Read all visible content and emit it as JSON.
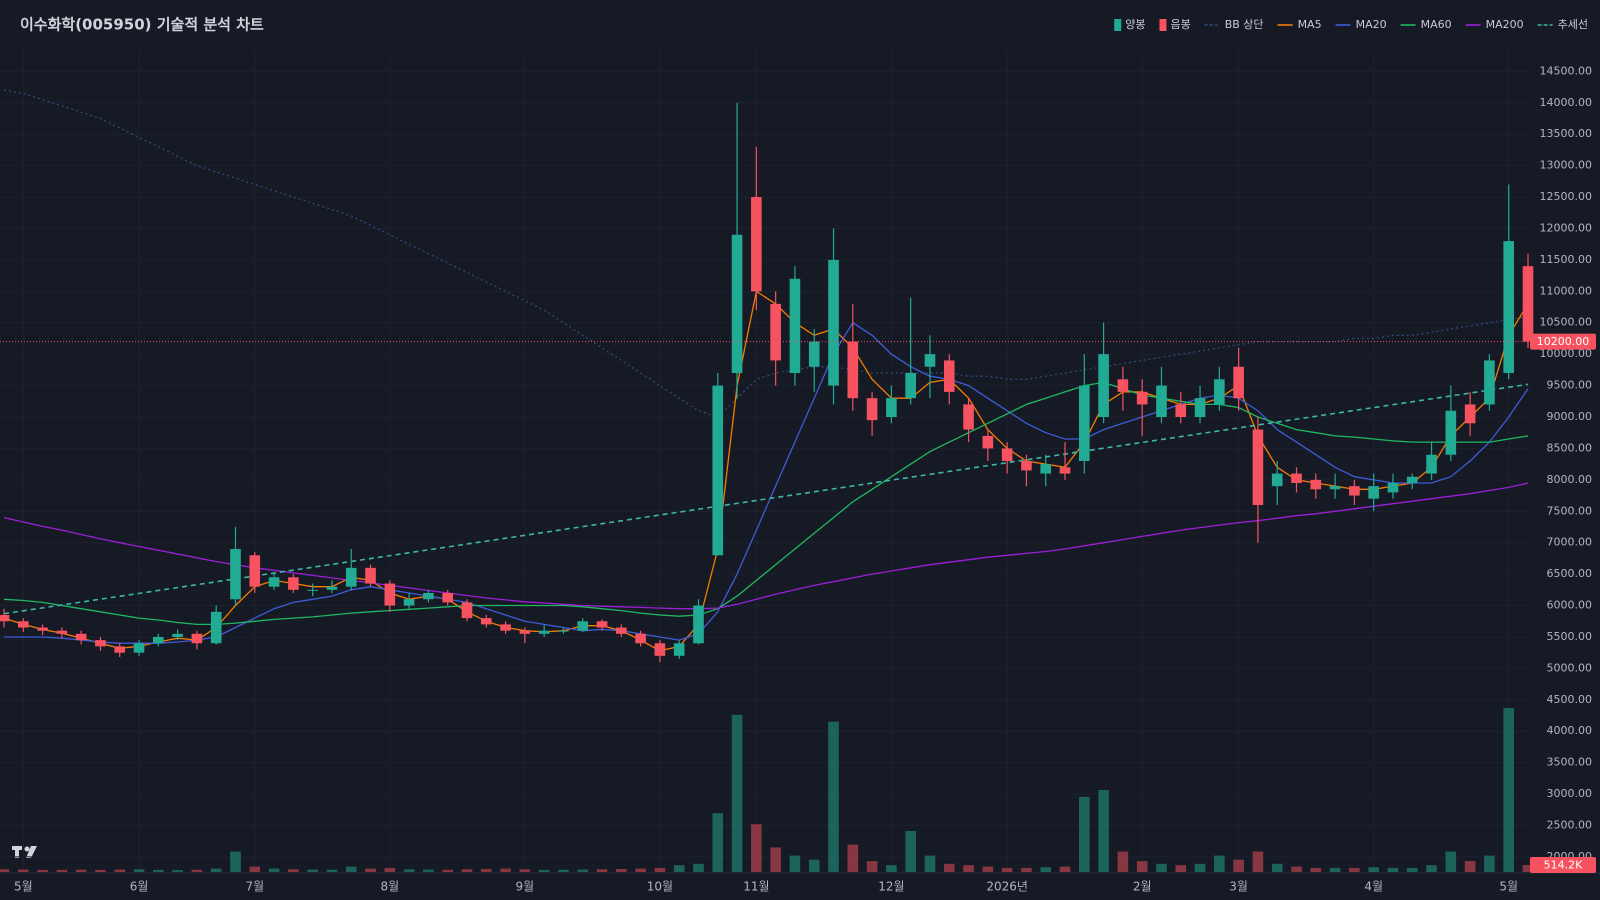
{
  "chart_data": {
    "type": "candlestick",
    "title": "이수화학(005950) 기술적 분석 차트",
    "categories": [
      null,
      "5월",
      null,
      null,
      null,
      null,
      null,
      "6월",
      null,
      null,
      null,
      null,
      null,
      "7월",
      null,
      null,
      null,
      null,
      null,
      null,
      "8월",
      null,
      null,
      null,
      null,
      null,
      null,
      "9월",
      null,
      null,
      null,
      null,
      null,
      null,
      "10월",
      null,
      null,
      null,
      null,
      "11월",
      null,
      null,
      null,
      null,
      null,
      null,
      "12월",
      null,
      null,
      null,
      null,
      null,
      "2026년",
      null,
      null,
      null,
      null,
      null,
      null,
      "2월",
      null,
      null,
      null,
      null,
      "3월",
      null,
      null,
      null,
      null,
      null,
      null,
      "4월",
      null,
      null,
      null,
      null,
      null,
      null,
      "5월",
      null
    ],
    "candles": {
      "up_name": "양봉",
      "down_name": "음봉",
      "up_color": "#22ab94",
      "down_color": "#f7525f",
      "open": [
        5850,
        5750,
        5650,
        5600,
        5550,
        5450,
        5350,
        5250,
        5400,
        5500,
        5550,
        5400,
        6100,
        6800,
        6300,
        6450,
        6250,
        6250,
        6300,
        6600,
        6350,
        6000,
        6100,
        6200,
        6050,
        5800,
        5700,
        5600,
        5550,
        5600,
        5600,
        5750,
        5650,
        5550,
        5400,
        5200,
        5400,
        6800,
        9700,
        12500,
        10800,
        9700,
        9800,
        9500,
        10200,
        9300,
        9000,
        9300,
        9800,
        9900,
        9200,
        8700,
        8500,
        8300,
        8100,
        8200,
        8300,
        9000,
        9600,
        9400,
        9000,
        9200,
        9000,
        9200,
        9800,
        8800,
        7900,
        8100,
        8000,
        7850,
        7900,
        7700,
        7800,
        7950,
        8100,
        8400,
        9200,
        9200,
        9700,
        11400
      ],
      "high": [
        5950,
        5800,
        5700,
        5650,
        5600,
        5500,
        5400,
        5450,
        5550,
        5620,
        5600,
        6000,
        7250,
        6850,
        6500,
        6500,
        6350,
        6400,
        6900,
        6650,
        6400,
        6200,
        6250,
        6250,
        6100,
        5850,
        5750,
        5650,
        5700,
        5650,
        5800,
        5780,
        5700,
        5600,
        5450,
        5450,
        6100,
        9700,
        14000,
        13300,
        11000,
        11400,
        10400,
        12000,
        10800,
        9400,
        9500,
        10900,
        10300,
        10000,
        9300,
        8800,
        8600,
        8400,
        8400,
        8600,
        10000,
        10500,
        9800,
        9600,
        9800,
        9400,
        9500,
        9800,
        10100,
        9000,
        8300,
        8200,
        8100,
        8100,
        8000,
        8100,
        8100,
        8100,
        8600,
        9500,
        9400,
        10000,
        12700,
        11600
      ],
      "low": [
        5650,
        5580,
        5530,
        5480,
        5380,
        5280,
        5180,
        5200,
        5350,
        5450,
        5300,
        5380,
        6000,
        6200,
        6250,
        6200,
        6150,
        6200,
        6250,
        6300,
        5900,
        5950,
        6050,
        6000,
        5750,
        5650,
        5550,
        5400,
        5500,
        5550,
        5580,
        5600,
        5500,
        5350,
        5100,
        5150,
        5380,
        6800,
        9300,
        10700,
        9500,
        9500,
        9400,
        9200,
        9100,
        8700,
        8900,
        9200,
        9300,
        9200,
        8600,
        8300,
        8100,
        7900,
        7900,
        8000,
        8100,
        8900,
        9100,
        8700,
        8900,
        8900,
        8900,
        9100,
        9100,
        7000,
        7600,
        7800,
        7700,
        7700,
        7600,
        7500,
        7700,
        7850,
        8000,
        8300,
        8700,
        9100,
        9600,
        10100
      ],
      "close": [
        5750,
        5650,
        5600,
        5550,
        5450,
        5350,
        5250,
        5400,
        5500,
        5550,
        5400,
        5900,
        6900,
        6300,
        6450,
        6250,
        6250,
        6300,
        6600,
        6350,
        6000,
        6100,
        6200,
        6050,
        5800,
        5700,
        5600,
        5550,
        5600,
        5600,
        5750,
        5650,
        5550,
        5400,
        5200,
        5400,
        6000,
        9500,
        11900,
        11000,
        9900,
        11200,
        10200,
        11500,
        9300,
        8950,
        9300,
        9700,
        10000,
        9400,
        8800,
        8500,
        8300,
        8150,
        8250,
        8100,
        9500,
        10000,
        9400,
        9200,
        9500,
        9000,
        9300,
        9600,
        9300,
        7600,
        8100,
        7950,
        7850,
        7900,
        7750,
        7900,
        7950,
        8050,
        8400,
        9100,
        8900,
        9900,
        11800,
        10200
      ]
    },
    "series": [
      {
        "name": "BB 상단",
        "color": "#2f4a7a",
        "style": "dotted",
        "values": [
          14200,
          14150,
          14050,
          13950,
          13850,
          13750,
          13600,
          13450,
          13300,
          13150,
          13000,
          12900,
          12800,
          12700,
          12600,
          12500,
          12400,
          12300,
          12200,
          12050,
          11900,
          11750,
          11600,
          11450,
          11300,
          11150,
          11000,
          10850,
          10700,
          10500,
          10300,
          10100,
          9900,
          9700,
          9500,
          9300,
          9100,
          9000,
          9300,
          9600,
          9700,
          9750,
          9800,
          9800,
          9750,
          9700,
          9700,
          9700,
          9700,
          9700,
          9650,
          9650,
          9600,
          9600,
          9650,
          9700,
          9750,
          9800,
          9850,
          9900,
          9950,
          10000,
          10050,
          10100,
          10150,
          10200,
          10200,
          10200,
          10200,
          10200,
          10250,
          10250,
          10300,
          10300,
          10350,
          10400,
          10450,
          10500,
          10550,
          10600
        ]
      },
      {
        "name": "MA5",
        "color": "#f57c00",
        "style": "solid",
        "values": [
          5800,
          5700,
          5620,
          5560,
          5480,
          5400,
          5320,
          5350,
          5420,
          5480,
          5450,
          5650,
          6000,
          6300,
          6400,
          6350,
          6300,
          6300,
          6450,
          6400,
          6200,
          6100,
          6150,
          6100,
          5900,
          5750,
          5650,
          5600,
          5580,
          5600,
          5680,
          5680,
          5600,
          5450,
          5280,
          5350,
          5700,
          6900,
          9500,
          11000,
          10800,
          10500,
          10300,
          10400,
          10100,
          9600,
          9300,
          9300,
          9550,
          9600,
          9300,
          8800,
          8500,
          8300,
          8250,
          8200,
          8600,
          9200,
          9400,
          9400,
          9300,
          9200,
          9200,
          9300,
          9500,
          8700,
          8200,
          8000,
          7950,
          7900,
          7850,
          7850,
          7900,
          7950,
          8200,
          8700,
          9000,
          9300,
          10300,
          10800
        ]
      },
      {
        "name": "MA20",
        "color": "#3f5bd8",
        "style": "solid",
        "values": [
          5500,
          5500,
          5500,
          5480,
          5450,
          5420,
          5400,
          5400,
          5400,
          5420,
          5450,
          5500,
          5650,
          5800,
          5950,
          6050,
          6100,
          6150,
          6250,
          6300,
          6250,
          6200,
          6150,
          6100,
          6050,
          5950,
          5850,
          5750,
          5700,
          5650,
          5600,
          5620,
          5600,
          5550,
          5500,
          5450,
          5550,
          5900,
          6500,
          7200,
          7900,
          8600,
          9300,
          10000,
          10500,
          10300,
          10000,
          9800,
          9650,
          9600,
          9500,
          9300,
          9100,
          8900,
          8750,
          8650,
          8650,
          8800,
          8900,
          9000,
          9100,
          9200,
          9300,
          9350,
          9300,
          9100,
          8800,
          8600,
          8400,
          8200,
          8050,
          8000,
          7950,
          7950,
          7950,
          8050,
          8300,
          8600,
          9000,
          9450
        ]
      },
      {
        "name": "MA60",
        "color": "#1fb862",
        "style": "solid",
        "values": [
          6100,
          6080,
          6050,
          6000,
          5950,
          5900,
          5850,
          5800,
          5770,
          5730,
          5700,
          5700,
          5720,
          5750,
          5780,
          5800,
          5820,
          5850,
          5880,
          5900,
          5920,
          5940,
          5960,
          5980,
          6000,
          6000,
          6000,
          6000,
          6000,
          6000,
          5980,
          5950,
          5920,
          5880,
          5850,
          5830,
          5850,
          5950,
          6150,
          6400,
          6650,
          6900,
          7150,
          7400,
          7650,
          7850,
          8050,
          8250,
          8450,
          8600,
          8750,
          8900,
          9050,
          9200,
          9300,
          9400,
          9500,
          9550,
          9450,
          9350,
          9300,
          9250,
          9200,
          9200,
          9150,
          9000,
          8900,
          8800,
          8750,
          8700,
          8680,
          8650,
          8620,
          8600,
          8600,
          8600,
          8600,
          8600,
          8650,
          8700
        ]
      },
      {
        "name": "MA200",
        "color": "#9c1fd6",
        "style": "solid",
        "values": [
          7400,
          7330,
          7260,
          7200,
          7130,
          7060,
          7000,
          6940,
          6880,
          6820,
          6760,
          6700,
          6650,
          6600,
          6560,
          6520,
          6480,
          6440,
          6400,
          6360,
          6320,
          6280,
          6240,
          6200,
          6160,
          6120,
          6090,
          6060,
          6040,
          6020,
          6000,
          5990,
          5980,
          5970,
          5960,
          5950,
          5950,
          5960,
          6020,
          6100,
          6180,
          6250,
          6320,
          6380,
          6440,
          6500,
          6550,
          6600,
          6650,
          6690,
          6730,
          6770,
          6800,
          6830,
          6860,
          6900,
          6950,
          7000,
          7050,
          7100,
          7150,
          7200,
          7240,
          7280,
          7320,
          7350,
          7390,
          7430,
          7460,
          7500,
          7540,
          7580,
          7620,
          7660,
          7700,
          7740,
          7780,
          7830,
          7880,
          7950
        ]
      }
    ],
    "trendline": {
      "name": "추세선",
      "color": "#3cb8a8",
      "values": [
        5870,
        9520
      ]
    },
    "volume": {
      "values": [
        200,
        180,
        150,
        160,
        170,
        150,
        180,
        200,
        150,
        140,
        160,
        250,
        1500,
        400,
        250,
        200,
        180,
        160,
        400,
        250,
        300,
        200,
        180,
        160,
        200,
        220,
        250,
        200,
        150,
        160,
        180,
        200,
        220,
        250,
        300,
        500,
        600,
        4300,
        11500,
        3500,
        1800,
        1200,
        900,
        11000,
        2000,
        800,
        500,
        3000,
        1200,
        600,
        500,
        400,
        300,
        300,
        350,
        400,
        5500,
        6000,
        1500,
        800,
        600,
        500,
        600,
        1200,
        900,
        1500,
        600,
        400,
        300,
        300,
        300,
        350,
        300,
        300,
        500,
        1500,
        800,
        1200,
        12000,
        514.2
      ],
      "ylim": [
        0,
        12000
      ],
      "last_label": "514.2K"
    },
    "last_price_label": "10200.00",
    "ylim": [
      1760,
      14840
    ],
    "yticks": [
      {
        "value": 2000,
        "label": "2000.00"
      },
      {
        "value": 2500,
        "label": "2500.00"
      },
      {
        "value": 3000,
        "label": "3000.00"
      },
      {
        "value": 3500,
        "label": "3500.00"
      },
      {
        "value": 4000,
        "label": "4000.00"
      },
      {
        "value": 4500,
        "label": "4500.00"
      },
      {
        "value": 5000,
        "label": "5000.00"
      },
      {
        "value": 5500,
        "label": "5500.00"
      },
      {
        "value": 6000,
        "label": "6000.00"
      },
      {
        "value": 6500,
        "label": "6500.00"
      },
      {
        "value": 7000,
        "label": "7000.00"
      },
      {
        "value": 7500,
        "label": "7500.00"
      },
      {
        "value": 8000,
        "label": "8000.00"
      },
      {
        "value": 8500,
        "label": "8500.00"
      },
      {
        "value": 9000,
        "label": "9000.00"
      },
      {
        "value": 9500,
        "label": "9500.00"
      },
      {
        "value": 10000,
        "label": "10000.00"
      },
      {
        "value": 10500,
        "label": "10500.00"
      },
      {
        "value": 11000,
        "label": "11000.00"
      },
      {
        "value": 11500,
        "label": "11500.00"
      },
      {
        "value": 12000,
        "label": "12000.00"
      },
      {
        "value": 12500,
        "label": "12500.00"
      },
      {
        "value": 13000,
        "label": "13000.00"
      },
      {
        "value": 13500,
        "label": "13500.00"
      },
      {
        "value": 14000,
        "label": "14000.00"
      },
      {
        "value": 14500,
        "label": "14500.00"
      }
    ],
    "grid": true
  }
}
